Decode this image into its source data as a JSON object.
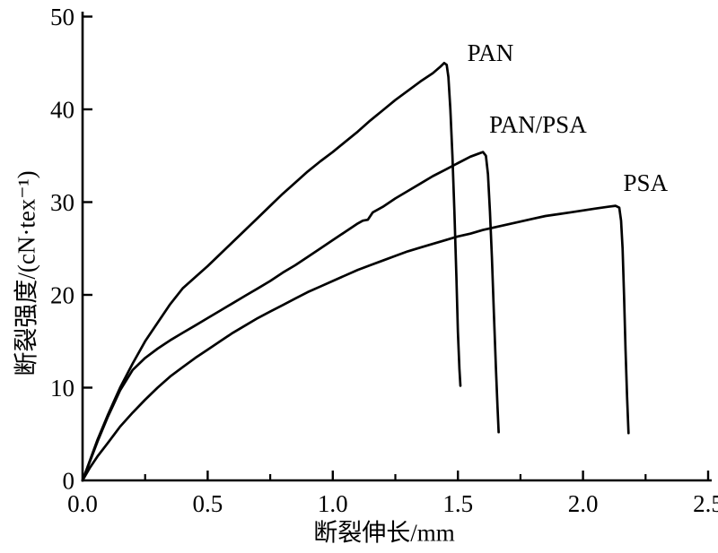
{
  "chart_data": {
    "type": "line",
    "title": "",
    "xlabel": "断裂伸长/mm",
    "ylabel": "断裂强度/(cN·tex⁻¹)",
    "xlim": [
      0,
      2.5
    ],
    "ylim": [
      0,
      50
    ],
    "grid": false,
    "legend_position": "inline-labels",
    "ink_color": "#000000",
    "background_color": "#ffffff",
    "x_major_ticks": [
      0,
      0.5,
      1.0,
      1.5,
      2.0,
      2.5
    ],
    "x_tick_labels": [
      "0.0",
      "0.5",
      "1.0",
      "1.5",
      "2.0",
      "2.5"
    ],
    "x_minor_ticks": [
      0.25,
      0.75,
      1.25,
      1.75,
      2.25
    ],
    "y_ticks": [
      0,
      10,
      20,
      30,
      40,
      50
    ],
    "y_tick_labels": [
      "0",
      "10",
      "20",
      "30",
      "40",
      "50"
    ],
    "series": [
      {
        "id": "pan",
        "name": "PAN",
        "break_strength": 45.0,
        "break_elongation": 1.44,
        "label": {
          "text": "PAN",
          "x": 1.63,
          "y": 45.2
        },
        "points": [
          [
            0,
            0
          ],
          [
            0.03,
            2.2
          ],
          [
            0.06,
            4.4
          ],
          [
            0.1,
            7.0
          ],
          [
            0.15,
            10.0
          ],
          [
            0.2,
            12.6
          ],
          [
            0.25,
            15.0
          ],
          [
            0.3,
            17.0
          ],
          [
            0.35,
            19.0
          ],
          [
            0.4,
            20.7
          ],
          [
            0.45,
            21.9
          ],
          [
            0.5,
            23.1
          ],
          [
            0.55,
            24.4
          ],
          [
            0.6,
            25.7
          ],
          [
            0.65,
            27.0
          ],
          [
            0.7,
            28.3
          ],
          [
            0.75,
            29.6
          ],
          [
            0.8,
            30.9
          ],
          [
            0.85,
            32.1
          ],
          [
            0.9,
            33.3
          ],
          [
            0.95,
            34.4
          ],
          [
            1.0,
            35.4
          ],
          [
            1.05,
            36.5
          ],
          [
            1.1,
            37.6
          ],
          [
            1.15,
            38.8
          ],
          [
            1.2,
            39.9
          ],
          [
            1.25,
            41.0
          ],
          [
            1.3,
            42.0
          ],
          [
            1.35,
            43.0
          ],
          [
            1.4,
            43.9
          ],
          [
            1.43,
            44.6
          ],
          [
            1.445,
            45.0
          ],
          [
            1.455,
            44.8
          ],
          [
            1.462,
            43.5
          ],
          [
            1.47,
            40.0
          ],
          [
            1.478,
            35.0
          ],
          [
            1.486,
            29.0
          ],
          [
            1.494,
            22.0
          ],
          [
            1.5,
            16.0
          ],
          [
            1.506,
            12.0
          ],
          [
            1.51,
            10.2
          ]
        ]
      },
      {
        "id": "pan-psa",
        "name": "PAN/PSA",
        "break_strength": 35.5,
        "break_elongation": 1.6,
        "label": {
          "text": "PAN/PSA",
          "x": 1.82,
          "y": 37.5
        },
        "points": [
          [
            0,
            0
          ],
          [
            0.03,
            2.1
          ],
          [
            0.06,
            4.2
          ],
          [
            0.1,
            6.8
          ],
          [
            0.15,
            9.7
          ],
          [
            0.2,
            11.9
          ],
          [
            0.25,
            13.2
          ],
          [
            0.3,
            14.2
          ],
          [
            0.35,
            15.1
          ],
          [
            0.4,
            15.9
          ],
          [
            0.45,
            16.7
          ],
          [
            0.5,
            17.5
          ],
          [
            0.55,
            18.3
          ],
          [
            0.6,
            19.1
          ],
          [
            0.65,
            19.9
          ],
          [
            0.7,
            20.7
          ],
          [
            0.75,
            21.5
          ],
          [
            0.8,
            22.4
          ],
          [
            0.85,
            23.2
          ],
          [
            0.9,
            24.1
          ],
          [
            0.95,
            25.0
          ],
          [
            1.0,
            25.9
          ],
          [
            1.05,
            26.8
          ],
          [
            1.1,
            27.7
          ],
          [
            1.12,
            28.0
          ],
          [
            1.14,
            28.1
          ],
          [
            1.16,
            28.9
          ],
          [
            1.2,
            29.5
          ],
          [
            1.25,
            30.4
          ],
          [
            1.3,
            31.2
          ],
          [
            1.35,
            32.0
          ],
          [
            1.4,
            32.8
          ],
          [
            1.45,
            33.5
          ],
          [
            1.5,
            34.2
          ],
          [
            1.55,
            34.9
          ],
          [
            1.58,
            35.2
          ],
          [
            1.6,
            35.4
          ],
          [
            1.612,
            35.0
          ],
          [
            1.62,
            33.0
          ],
          [
            1.628,
            29.0
          ],
          [
            1.636,
            24.0
          ],
          [
            1.644,
            18.0
          ],
          [
            1.652,
            12.0
          ],
          [
            1.658,
            8.0
          ],
          [
            1.663,
            5.2
          ]
        ]
      },
      {
        "id": "psa",
        "name": "PSA",
        "break_strength": 29.6,
        "break_elongation": 2.13,
        "label": {
          "text": "PSA",
          "x": 2.25,
          "y": 31.2
        },
        "points": [
          [
            0,
            0
          ],
          [
            0.03,
            1.4
          ],
          [
            0.06,
            2.6
          ],
          [
            0.1,
            4.0
          ],
          [
            0.15,
            5.8
          ],
          [
            0.2,
            7.3
          ],
          [
            0.25,
            8.7
          ],
          [
            0.3,
            10.0
          ],
          [
            0.35,
            11.2
          ],
          [
            0.4,
            12.2
          ],
          [
            0.45,
            13.2
          ],
          [
            0.5,
            14.1
          ],
          [
            0.55,
            15.0
          ],
          [
            0.6,
            15.9
          ],
          [
            0.65,
            16.7
          ],
          [
            0.7,
            17.5
          ],
          [
            0.75,
            18.2
          ],
          [
            0.8,
            18.9
          ],
          [
            0.85,
            19.6
          ],
          [
            0.9,
            20.3
          ],
          [
            0.95,
            20.9
          ],
          [
            1.0,
            21.5
          ],
          [
            1.05,
            22.1
          ],
          [
            1.1,
            22.7
          ],
          [
            1.15,
            23.2
          ],
          [
            1.2,
            23.7
          ],
          [
            1.25,
            24.2
          ],
          [
            1.3,
            24.7
          ],
          [
            1.35,
            25.1
          ],
          [
            1.4,
            25.5
          ],
          [
            1.45,
            25.9
          ],
          [
            1.5,
            26.3
          ],
          [
            1.55,
            26.6
          ],
          [
            1.6,
            27.0
          ],
          [
            1.65,
            27.3
          ],
          [
            1.7,
            27.6
          ],
          [
            1.75,
            27.9
          ],
          [
            1.8,
            28.2
          ],
          [
            1.85,
            28.5
          ],
          [
            1.9,
            28.7
          ],
          [
            1.95,
            28.9
          ],
          [
            2.0,
            29.1
          ],
          [
            2.05,
            29.3
          ],
          [
            2.1,
            29.5
          ],
          [
            2.13,
            29.6
          ],
          [
            2.145,
            29.4
          ],
          [
            2.152,
            28.0
          ],
          [
            2.158,
            25.0
          ],
          [
            2.164,
            20.0
          ],
          [
            2.17,
            14.0
          ],
          [
            2.176,
            9.0
          ],
          [
            2.182,
            5.1
          ]
        ]
      }
    ]
  }
}
